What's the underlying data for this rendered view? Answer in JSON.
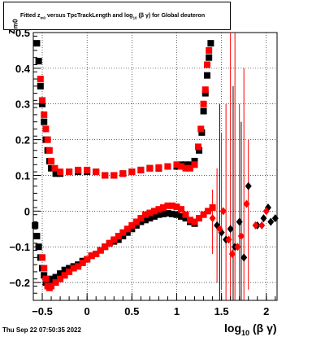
{
  "header": {
    "title_pre": "Fitted  z",
    "title_sub": "m0",
    "title_mid": " versus TpcTrackLength and log",
    "title_sub2": "10",
    "title_post": " (β γ) for Global deuteron"
  },
  "footer": {
    "timestamp": "Thu Sep 22 07:50:35 2022"
  },
  "axes": {
    "xlabel_main": "log",
    "xlabel_sub": "10",
    "xlabel_post": " (β γ)",
    "ylabel_main": "z",
    "ylabel_sub": "m0"
  },
  "chart_data": {
    "type": "scatter",
    "title": "Fitted z_m0 versus TpcTrackLength and log10 (β γ) for Global deuteron",
    "xlabel": "log10 (β γ)",
    "ylabel": "z_m0",
    "xlim": [
      -0.6,
      2.12
    ],
    "ylim": [
      -0.25,
      0.5
    ],
    "grid": true,
    "x_ticks": [
      -0.5,
      0,
      0.5,
      1,
      1.5,
      2
    ],
    "x_tick_labels": [
      "−0.5",
      "0",
      "0.5",
      "1",
      "1.5",
      "2"
    ],
    "y_ticks": [
      -0.2,
      -0.1,
      0,
      0.1,
      0.2,
      0.3,
      0.4,
      0.5
    ],
    "y_tick_labels": [
      "−0.2",
      "−0.1",
      "0",
      "0.1",
      "0.2",
      "0.3",
      "0.4",
      "0.5"
    ],
    "series": [
      {
        "color": "#000000",
        "marker": "square",
        "x": [
          -0.56,
          -0.54,
          -0.52,
          -0.5,
          -0.48,
          -0.46,
          -0.44,
          -0.42,
          -0.4,
          -0.35,
          -0.3,
          -0.2,
          -0.1,
          0,
          0.1,
          0.2,
          0.3,
          0.4,
          0.5,
          0.6,
          0.7,
          0.8,
          0.9,
          1.0,
          1.05,
          1.1,
          1.15,
          1.2,
          1.25,
          1.28,
          1.3,
          1.32,
          1.34,
          1.36,
          1.38
        ],
        "y": [
          0.47,
          0.42,
          0.35,
          0.3,
          0.25,
          0.2,
          0.17,
          0.14,
          0.12,
          0.105,
          0.105,
          0.11,
          0.11,
          0.11,
          0.11,
          0.1,
          0.1,
          0.105,
          0.11,
          0.115,
          0.12,
          0.12,
          0.125,
          0.125,
          0.13,
          0.13,
          0.13,
          0.14,
          0.17,
          0.22,
          0.28,
          0.33,
          0.38,
          0.43,
          0.47
        ]
      },
      {
        "color": "#ff0000",
        "marker": "square",
        "x": [
          -0.52,
          -0.5,
          -0.48,
          -0.46,
          -0.44,
          -0.42,
          -0.4,
          -0.36,
          -0.3,
          -0.2,
          -0.1,
          0,
          0.1,
          0.2,
          0.3,
          0.4,
          0.5,
          0.6,
          0.7,
          0.8,
          0.9,
          1.0,
          1.05,
          1.1,
          1.15,
          1.2,
          1.24,
          1.27,
          1.3,
          1.32,
          1.34,
          1.36
        ],
        "y": [
          0.37,
          0.31,
          0.27,
          0.23,
          0.2,
          0.17,
          0.14,
          0.12,
          0.11,
          0.11,
          0.115,
          0.115,
          0.11,
          0.1,
          0.1,
          0.105,
          0.11,
          0.115,
          0.12,
          0.122,
          0.125,
          0.13,
          0.125,
          0.12,
          0.12,
          0.13,
          0.18,
          0.23,
          0.3,
          0.34,
          0.41,
          0.45
        ]
      },
      {
        "color": "#000000",
        "marker": "square",
        "x": [
          -0.58,
          -0.56,
          -0.54,
          -0.52,
          -0.5,
          -0.48,
          -0.46,
          -0.44,
          -0.42,
          -0.4,
          -0.35,
          -0.3,
          -0.25,
          -0.2,
          -0.15,
          -0.1,
          -0.05,
          0,
          0.05,
          0.1,
          0.15,
          0.2,
          0.25,
          0.3,
          0.35,
          0.4,
          0.45,
          0.5,
          0.55,
          0.6,
          0.65,
          0.7,
          0.75,
          0.8,
          0.85,
          0.9,
          0.95,
          1.0,
          1.05,
          1.1,
          1.15,
          1.2
        ],
        "y": [
          -0.04,
          -0.07,
          -0.1,
          -0.13,
          -0.16,
          -0.18,
          -0.2,
          -0.205,
          -0.2,
          -0.19,
          -0.185,
          -0.175,
          -0.165,
          -0.16,
          -0.155,
          -0.15,
          -0.14,
          -0.135,
          -0.125,
          -0.12,
          -0.11,
          -0.1,
          -0.09,
          -0.085,
          -0.08,
          -0.07,
          -0.06,
          -0.05,
          -0.04,
          -0.03,
          -0.025,
          -0.02,
          -0.015,
          -0.01,
          -0.008,
          -0.006,
          -0.008,
          -0.01,
          -0.015,
          -0.02,
          -0.03,
          -0.035
        ]
      },
      {
        "color": "#ff0000",
        "marker": "square",
        "x": [
          -0.5,
          -0.48,
          -0.46,
          -0.44,
          -0.42,
          -0.4,
          -0.35,
          -0.3,
          -0.25,
          -0.2,
          -0.15,
          -0.1,
          -0.05,
          0,
          0.05,
          0.1,
          0.15,
          0.2,
          0.25,
          0.3,
          0.35,
          0.4,
          0.45,
          0.5,
          0.55,
          0.6,
          0.65,
          0.7,
          0.75,
          0.8,
          0.85,
          0.9,
          0.95,
          1.0,
          1.05,
          1.1,
          1.15,
          1.2,
          1.25,
          1.3,
          1.35,
          1.4
        ],
        "y": [
          -0.13,
          -0.16,
          -0.19,
          -0.21,
          -0.215,
          -0.21,
          -0.2,
          -0.19,
          -0.18,
          -0.17,
          -0.16,
          -0.155,
          -0.145,
          -0.135,
          -0.125,
          -0.12,
          -0.11,
          -0.1,
          -0.09,
          -0.08,
          -0.07,
          -0.06,
          -0.05,
          -0.04,
          -0.03,
          -0.02,
          -0.01,
          -0.005,
          0.0,
          0.005,
          0.01,
          0.015,
          0.015,
          0.012,
          0.005,
          -0.01,
          -0.025,
          -0.03,
          -0.02,
          -0.01,
          0.0,
          0.01
        ]
      },
      {
        "color": "#000000",
        "marker": "diamond",
        "x": [
          1.45,
          1.5,
          1.55,
          1.6,
          1.65,
          1.7,
          1.75,
          1.8,
          1.9,
          1.97,
          2.02,
          2.05,
          2.1
        ],
        "y": [
          -0.04,
          -0.06,
          -0.08,
          -0.05,
          -0.1,
          -0.03,
          -0.13,
          0.07,
          -0.04,
          -0.02,
          0.01,
          -0.03,
          -0.02
        ]
      },
      {
        "color": "#ff0000",
        "marker": "diamond",
        "x": [
          1.4,
          1.48,
          1.52,
          1.58,
          1.62,
          1.68,
          1.72,
          1.78,
          1.88,
          1.95,
          2.0
        ],
        "y": [
          -0.02,
          -0.05,
          0.0,
          -0.08,
          -0.12,
          -0.1,
          -0.07,
          0.02,
          -0.04,
          -0.04,
          0.0
        ]
      }
    ],
    "error_bars": [
      {
        "x": 1.4,
        "ylo": -0.12,
        "yhi": 0.06,
        "color": "#ff0000"
      },
      {
        "x": 1.45,
        "ylo": -0.2,
        "yhi": 0.12,
        "color": "#ff0000"
      },
      {
        "x": 1.5,
        "ylo": -0.22,
        "yhi": 0.22,
        "color": "#ff0000"
      },
      {
        "x": 1.55,
        "ylo": -0.25,
        "yhi": 0.3,
        "color": "#ff0000"
      },
      {
        "x": 1.6,
        "ylo": -0.25,
        "yhi": 0.5,
        "color": "#ff0000"
      },
      {
        "x": 1.65,
        "ylo": -0.25,
        "yhi": 0.5,
        "color": "#ff0000"
      },
      {
        "x": 1.7,
        "ylo": -0.25,
        "yhi": 0.3,
        "color": "#ff0000"
      },
      {
        "x": 1.75,
        "ylo": -0.25,
        "yhi": 0.4,
        "color": "#ff0000"
      },
      {
        "x": 1.8,
        "ylo": -0.22,
        "yhi": 0.2,
        "color": "#ff0000"
      },
      {
        "x": 1.48,
        "ylo": -0.25,
        "yhi": 0.3,
        "color": "#000000"
      },
      {
        "x": 1.63,
        "ylo": -0.25,
        "yhi": 0.35,
        "color": "#000000"
      },
      {
        "x": 1.72,
        "ylo": -0.25,
        "yhi": 0.25,
        "color": "#000000"
      }
    ]
  }
}
